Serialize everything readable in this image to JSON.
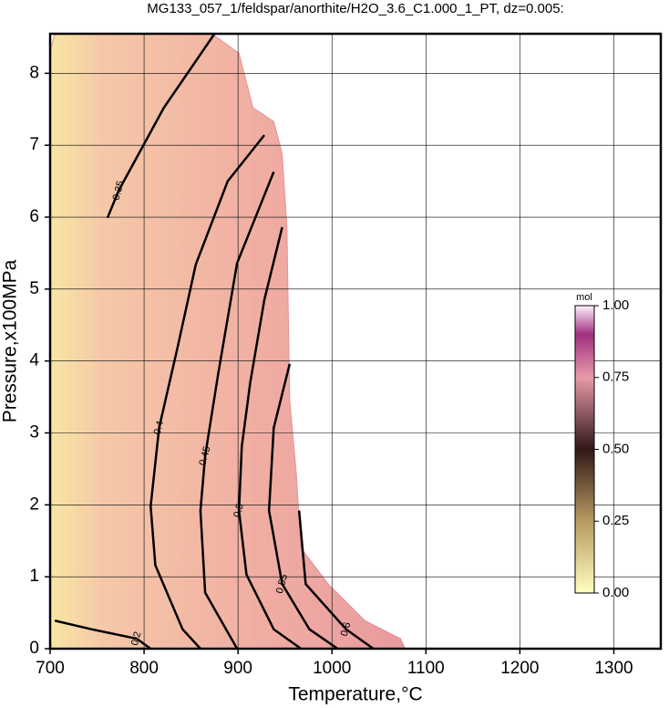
{
  "chart_data": {
    "type": "contour",
    "title": "MG133_057_1/feldspar/anorthite/H2O_3.6_C1.000_1_PT, dz=0.005:",
    "x_label": "Temperature,°C",
    "y_label": "Pressure,x100MPa",
    "xlim": [
      700,
      1350
    ],
    "xticks": [
      700,
      800,
      900,
      1000,
      1100,
      1200,
      1300
    ],
    "ylim": [
      0,
      8.55
    ],
    "yticks": [
      0,
      1,
      2,
      3,
      4,
      5,
      6,
      7,
      8
    ],
    "grid": true,
    "field": {
      "x": [
        700,
        705,
        872,
        901,
        916,
        938,
        947,
        952,
        955,
        962,
        967,
        996,
        1035,
        1073,
        1078,
        700
      ],
      "y": [
        8.3,
        8.55,
        8.55,
        8.28,
        7.52,
        7.33,
        6.88,
        5.87,
        3.46,
        2.44,
        1.4,
        0.9,
        0.39,
        0.14,
        0,
        0
      ]
    },
    "contours": [
      {
        "level": 0.2,
        "x": [
          705,
          744,
          792,
          807
        ],
        "y": [
          0.39,
          0.27,
          0.14,
          0
        ]
      },
      {
        "level": 0.35,
        "x": [
          875,
          821,
          773,
          761
        ],
        "y": [
          8.55,
          7.52,
          6.37,
          5.99
        ]
      },
      {
        "level": 0.4,
        "x": [
          928,
          889,
          855,
          836,
          816,
          807,
          812,
          841,
          860
        ],
        "y": [
          7.14,
          6.5,
          5.34,
          4.21,
          3.07,
          1.98,
          1.16,
          0.27,
          0
        ]
      },
      {
        "level": 0.45,
        "x": [
          938,
          899,
          879,
          865,
          860,
          865,
          899
        ],
        "y": [
          6.63,
          5.36,
          3.83,
          2.68,
          1.92,
          0.78,
          0
        ]
      },
      {
        "level": 0.5,
        "x": [
          947,
          928,
          913,
          904,
          901,
          909,
          938,
          967
        ],
        "y": [
          5.86,
          4.85,
          3.7,
          2.81,
          1.92,
          1.03,
          0.27,
          0
        ]
      },
      {
        "level": 0.55,
        "x": [
          955,
          938,
          933,
          947,
          976,
          1006
        ],
        "y": [
          3.96,
          3.07,
          1.92,
          0.9,
          0.27,
          0
        ]
      },
      {
        "level": 0.6,
        "x": [
          965,
          972,
          1015,
          1044
        ],
        "y": [
          1.92,
          0.9,
          0.27,
          0
        ]
      }
    ],
    "colorbar": {
      "label": "mol",
      "lim": [
        0,
        1
      ],
      "ticks": [
        {
          "value": 0,
          "label": "0.00"
        },
        {
          "value": 0.25,
          "label": "0.25"
        },
        {
          "value": 0.5,
          "label": "0.50"
        },
        {
          "value": 0.75,
          "label": "0.75"
        },
        {
          "value": 1,
          "label": "1.00"
        }
      ]
    }
  }
}
